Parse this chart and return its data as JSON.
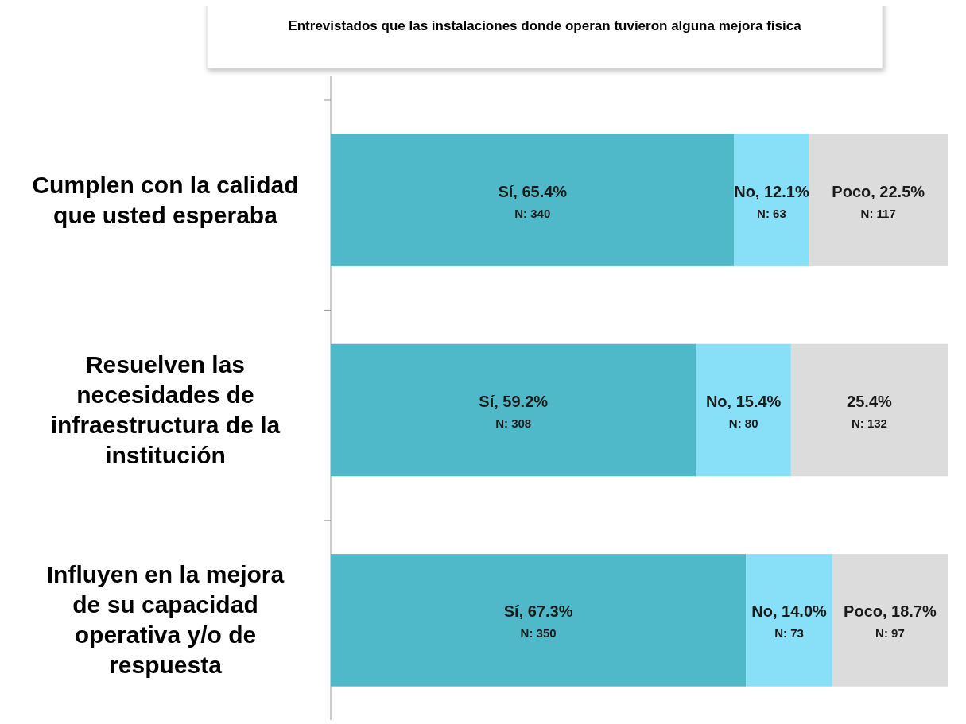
{
  "chart_data": {
    "type": "bar",
    "orientation": "horizontal",
    "stacked": true,
    "title": "Entrevistados que las instalaciones donde operan tuvieron alguna mejora física",
    "categories": [
      "Cumplen con la calidad que usted esperaba",
      "Resuelven las necesidades de infraestructura de la institución",
      "Influyen en la mejora de su capacidad operativa y/o de respuesta"
    ],
    "xlim": [
      0,
      100
    ],
    "series": [
      {
        "color": "#4fb9c9",
        "values": [
          65.4,
          59.2,
          67.3
        ],
        "value_labels": [
          "Sí, 65.4%\nN: 340",
          "Sí, 59.2%\nN: 308",
          "Sí, 67.3%\nN: 350"
        ]
      },
      {
        "color": "#87dff8",
        "values": [
          12.1,
          15.4,
          14.0
        ],
        "value_labels": [
          "No, 12.1%\nN: 63",
          "No, 15.4%\nN: 80",
          "No, 14.0%\nN: 73"
        ]
      },
      {
        "color": "#dcdcdc",
        "values": [
          22.5,
          25.4,
          18.7
        ],
        "value_labels": [
          "Poco, 22.5%\nN: 117",
          "25.4%\nN: 132",
          "Poco, 18.7%\nN: 97"
        ]
      }
    ]
  }
}
